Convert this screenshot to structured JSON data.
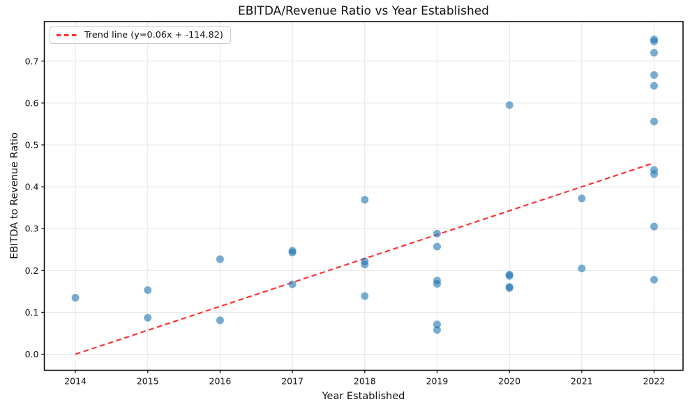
{
  "figure": {
    "title": "EBITDA/Revenue Ratio vs Year Established"
  },
  "chart_data": {
    "type": "scatter",
    "title": "EBITDA/Revenue Ratio vs Year Established",
    "xlabel": "Year Established",
    "ylabel": "EBITDA to Revenue Ratio",
    "x_ticks": [
      2014,
      2015,
      2016,
      2017,
      2018,
      2019,
      2020,
      2021,
      2022
    ],
    "y_ticks": [
      "0.0",
      "0.1",
      "0.2",
      "0.3",
      "0.4",
      "0.5",
      "0.6",
      "0.7"
    ],
    "xlim": [
      2013.57,
      2022.4
    ],
    "ylim": [
      -0.0383,
      0.7945
    ],
    "grid": true,
    "marker_color": "#1f77b4",
    "marker_alpha": 0.6,
    "trend_color": "#ff3333",
    "legend": {
      "position": "upper left",
      "entries": [
        {
          "label": "Trend line (y=0.06x + -114.82)",
          "style": "dashed",
          "color": "#ff3333"
        }
      ]
    },
    "trend_line": {
      "x": [
        2014.0,
        2022.0
      ],
      "y": [
        0.0,
        0.457
      ]
    },
    "points": [
      {
        "x": 2014,
        "y": 0.135
      },
      {
        "x": 2015,
        "y": 0.153
      },
      {
        "x": 2015,
        "y": 0.087
      },
      {
        "x": 2016,
        "y": 0.227
      },
      {
        "x": 2016,
        "y": 0.081
      },
      {
        "x": 2017,
        "y": 0.247
      },
      {
        "x": 2017,
        "y": 0.243
      },
      {
        "x": 2017,
        "y": 0.167
      },
      {
        "x": 2018,
        "y": 0.369
      },
      {
        "x": 2018,
        "y": 0.222
      },
      {
        "x": 2018,
        "y": 0.214
      },
      {
        "x": 2018,
        "y": 0.139
      },
      {
        "x": 2019,
        "y": 0.288
      },
      {
        "x": 2019,
        "y": 0.257
      },
      {
        "x": 2019,
        "y": 0.176
      },
      {
        "x": 2019,
        "y": 0.168
      },
      {
        "x": 2019,
        "y": 0.071
      },
      {
        "x": 2019,
        "y": 0.058
      },
      {
        "x": 2020,
        "y": 0.595
      },
      {
        "x": 2020,
        "y": 0.19
      },
      {
        "x": 2020,
        "y": 0.187
      },
      {
        "x": 2020,
        "y": 0.161
      },
      {
        "x": 2020,
        "y": 0.158
      },
      {
        "x": 2021,
        "y": 0.372
      },
      {
        "x": 2021,
        "y": 0.205
      },
      {
        "x": 2022,
        "y": 0.752
      },
      {
        "x": 2022,
        "y": 0.747
      },
      {
        "x": 2022,
        "y": 0.72
      },
      {
        "x": 2022,
        "y": 0.667
      },
      {
        "x": 2022,
        "y": 0.641
      },
      {
        "x": 2022,
        "y": 0.556
      },
      {
        "x": 2022,
        "y": 0.44
      },
      {
        "x": 2022,
        "y": 0.43
      },
      {
        "x": 2022,
        "y": 0.305
      },
      {
        "x": 2022,
        "y": 0.178
      }
    ]
  }
}
